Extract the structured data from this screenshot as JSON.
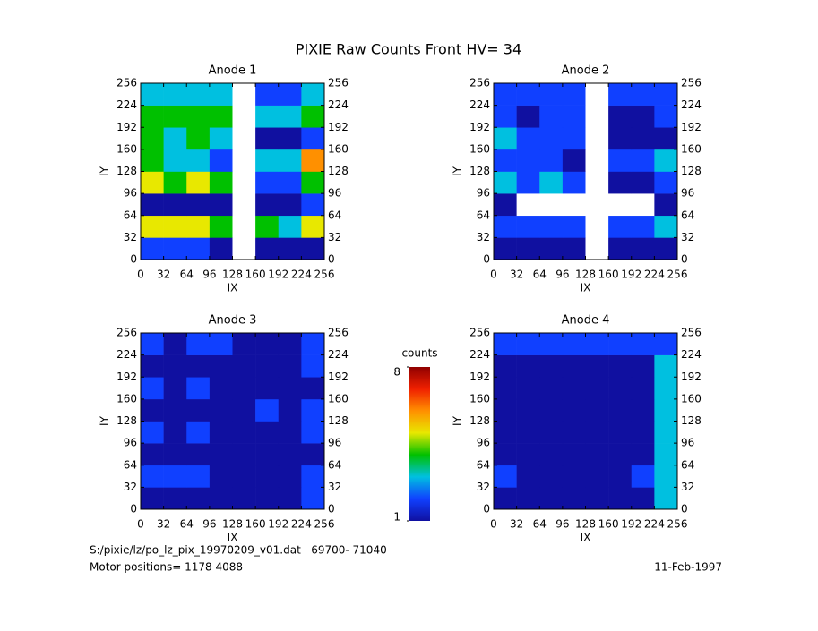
{
  "title": "PIXIE Raw Counts Front HV= 34",
  "chart_data": [
    {
      "type": "heatmap",
      "title": "Anode 1",
      "x_label": "IX",
      "y_label": "IY",
      "xlim": [
        0,
        256
      ],
      "ylim": [
        0,
        256
      ],
      "xticks": [
        0,
        32,
        64,
        96,
        128,
        160,
        192,
        224,
        256
      ],
      "yticks": [
        0,
        32,
        64,
        96,
        128,
        160,
        192,
        224,
        256
      ],
      "z": [
        [
          2,
          2,
          2,
          1,
          0,
          1,
          1,
          1
        ],
        [
          5,
          5,
          5,
          4,
          0,
          4,
          3,
          5
        ],
        [
          1,
          1,
          1,
          1,
          0,
          1,
          1,
          2
        ],
        [
          5,
          4,
          5,
          4,
          0,
          2,
          2,
          4
        ],
        [
          4,
          3,
          3,
          2,
          0,
          3,
          3,
          6
        ],
        [
          4,
          3,
          4,
          3,
          0,
          1,
          1,
          2
        ],
        [
          4,
          4,
          4,
          4,
          0,
          3,
          3,
          4
        ],
        [
          3,
          3,
          3,
          3,
          0,
          2,
          2,
          3
        ]
      ]
    },
    {
      "type": "heatmap",
      "title": "Anode 2",
      "x_label": "IX",
      "y_label": "IY",
      "xlim": [
        0,
        256
      ],
      "ylim": [
        0,
        256
      ],
      "xticks": [
        0,
        32,
        64,
        96,
        128,
        160,
        192,
        224,
        256
      ],
      "yticks": [
        0,
        32,
        64,
        96,
        128,
        160,
        192,
        224,
        256
      ],
      "z": [
        [
          1,
          1,
          1,
          1,
          0,
          1,
          1,
          1
        ],
        [
          2,
          2,
          2,
          2,
          0,
          2,
          2,
          3
        ],
        [
          1,
          0,
          0,
          0,
          0,
          0,
          0,
          1
        ],
        [
          3,
          2,
          3,
          2,
          0,
          1,
          1,
          2
        ],
        [
          2,
          2,
          2,
          1,
          0,
          2,
          2,
          3
        ],
        [
          3,
          2,
          2,
          2,
          0,
          1,
          1,
          1
        ],
        [
          2,
          1,
          2,
          2,
          0,
          1,
          1,
          2
        ],
        [
          2,
          2,
          2,
          2,
          0,
          2,
          2,
          2
        ]
      ]
    },
    {
      "type": "heatmap",
      "title": "Anode 3",
      "x_label": "IX",
      "y_label": "IY",
      "xlim": [
        0,
        256
      ],
      "ylim": [
        0,
        256
      ],
      "xticks": [
        0,
        32,
        64,
        96,
        128,
        160,
        192,
        224,
        256
      ],
      "yticks": [
        0,
        32,
        64,
        96,
        128,
        160,
        192,
        224,
        256
      ],
      "z": [
        [
          1,
          1,
          1,
          1,
          1,
          1,
          1,
          2
        ],
        [
          2,
          2,
          2,
          1,
          1,
          1,
          1,
          2
        ],
        [
          1,
          1,
          1,
          1,
          1,
          1,
          1,
          1
        ],
        [
          2,
          1,
          2,
          1,
          1,
          1,
          1,
          2
        ],
        [
          1,
          1,
          1,
          1,
          1,
          2,
          1,
          2
        ],
        [
          2,
          1,
          2,
          1,
          1,
          1,
          1,
          1
        ],
        [
          1,
          1,
          1,
          1,
          1,
          1,
          1,
          2
        ],
        [
          2,
          1,
          2,
          2,
          1,
          1,
          1,
          2
        ]
      ]
    },
    {
      "type": "heatmap",
      "title": "Anode 4",
      "x_label": "IX",
      "y_label": "IY",
      "xlim": [
        0,
        256
      ],
      "ylim": [
        0,
        256
      ],
      "xticks": [
        0,
        32,
        64,
        96,
        128,
        160,
        192,
        224,
        256
      ],
      "yticks": [
        0,
        32,
        64,
        96,
        128,
        160,
        192,
        224,
        256
      ],
      "z": [
        [
          1,
          1,
          1,
          1,
          1,
          1,
          1,
          3
        ],
        [
          2,
          1,
          1,
          1,
          1,
          1,
          2,
          3
        ],
        [
          1,
          1,
          1,
          1,
          1,
          1,
          1,
          3
        ],
        [
          1,
          1,
          1,
          1,
          1,
          1,
          1,
          3
        ],
        [
          1,
          1,
          1,
          1,
          1,
          1,
          1,
          3
        ],
        [
          1,
          1,
          1,
          1,
          1,
          1,
          1,
          3
        ],
        [
          1,
          1,
          1,
          1,
          1,
          1,
          1,
          3
        ],
        [
          2,
          2,
          2,
          2,
          2,
          2,
          2,
          2
        ]
      ]
    }
  ],
  "colorbar": {
    "label": "counts",
    "zlim": [
      1,
      8
    ],
    "ticks": [
      1,
      8
    ],
    "colorscale": [
      "#1010a0",
      "#1040ff",
      "#00c0e0",
      "#00c000",
      "#e8e800",
      "#ff9000",
      "#f02000",
      "#900000"
    ]
  },
  "footer": {
    "file": "S:/pixie/lz/po_lz_pix_19970209_v01.dat   69700- 71040",
    "motor": "Motor positions= 1178 4088",
    "date": "11-Feb-1997"
  }
}
